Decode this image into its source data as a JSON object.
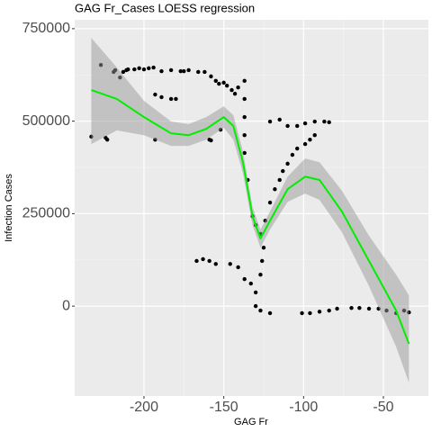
{
  "chart_data": {
    "type": "scatter",
    "title": "GAG Fr_Cases LOESS regression",
    "x_label": "GAG Fr",
    "y_label": "Infection Cases",
    "xlim": [
      -243.4,
      -21.8
    ],
    "ylim": [
      -243000,
      774000
    ],
    "xticks": [
      -200,
      -150,
      -100,
      -50
    ],
    "yticks": [
      0,
      250000,
      500000,
      750000
    ],
    "grid": true,
    "color": "#000000",
    "x": [
      -227,
      -219,
      -218,
      -215,
      -213,
      -211,
      -210,
      -206,
      -203,
      -200,
      -197,
      -194,
      -189,
      -183,
      -177,
      -175,
      -172,
      -166,
      -162,
      -158,
      -155,
      -153,
      -150,
      -148,
      -145,
      -143,
      -141,
      -233,
      -224,
      -223,
      -193,
      -189,
      -183,
      -180,
      -193,
      -159,
      -158,
      -152,
      -137,
      -137,
      -137,
      -137,
      -137,
      -135,
      -132,
      -130,
      -127,
      -124,
      -121,
      -118,
      -115,
      -113,
      -110,
      -107,
      -104,
      -99,
      -96,
      -93,
      -121,
      -115,
      -110,
      -104,
      -99,
      -93,
      -87,
      -84,
      -167,
      -163,
      -159,
      -155,
      -146,
      -141,
      -137,
      -133,
      -130,
      -127,
      -126,
      -125,
      -130,
      -127,
      -121,
      -101,
      -96,
      -90,
      -84,
      -79,
      -70,
      -65,
      -59,
      -53,
      -48,
      -42,
      -37,
      -34
    ],
    "values": [
      652000,
      633000,
      638000,
      618000,
      633000,
      638000,
      640000,
      640000,
      643000,
      640000,
      643000,
      645000,
      635000,
      638000,
      635000,
      635000,
      638000,
      633000,
      633000,
      621000,
      609000,
      601000,
      604000,
      596000,
      584000,
      574000,
      591000,
      458000,
      455000,
      450000,
      572000,
      565000,
      560000,
      560000,
      450000,
      450000,
      448000,
      477000,
      609000,
      560000,
      511000,
      462000,
      414000,
      341000,
      243000,
      219000,
      195000,
      231000,
      280000,
      316000,
      341000,
      365000,
      385000,
      409000,
      426000,
      438000,
      450000,
      462000,
      499000,
      504000,
      487000,
      487000,
      494000,
      499000,
      499000,
      497000,
      122000,
      127000,
      122000,
      114000,
      114000,
      105000,
      73000,
      61000,
      37000,
      85000,
      122000,
      158000,
      0,
      -12000,
      -19000,
      -19000,
      -19000,
      -15000,
      -12000,
      -7000,
      -5000,
      -5000,
      -7000,
      -7000,
      -12000,
      -19000,
      -12000,
      -17000
    ],
    "fit": {
      "color": "#00ee00",
      "band_color": "#999999",
      "x": [
        -233,
        -217,
        -200,
        -183,
        -172,
        -161,
        -150,
        -144,
        -138,
        -132,
        -127,
        -121,
        -110,
        -99,
        -90,
        -76,
        -59,
        -42,
        -34
      ],
      "y": [
        584000,
        560000,
        511000,
        467000,
        462000,
        479000,
        511000,
        487000,
        389000,
        243000,
        183000,
        231000,
        316000,
        350000,
        341000,
        256000,
        122000,
        -12000,
        -102000
      ],
      "upper": [
        725000,
        645000,
        555000,
        499000,
        492000,
        511000,
        540000,
        516000,
        419000,
        268000,
        207000,
        256000,
        350000,
        399000,
        389000,
        312000,
        190000,
        85000,
        29000
      ],
      "lower": [
        438000,
        475000,
        462000,
        433000,
        433000,
        450000,
        482000,
        450000,
        360000,
        219000,
        158000,
        207000,
        282000,
        304000,
        287000,
        200000,
        54000,
        -110000,
        -207000
      ]
    }
  }
}
